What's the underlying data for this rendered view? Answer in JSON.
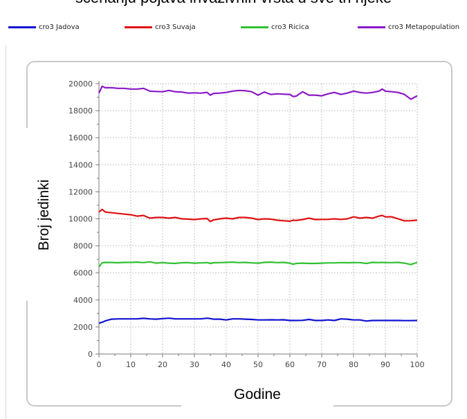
{
  "title": "scenariju pojava invazivnih vrsta u sve tri rijeke",
  "legend": [
    {
      "name": "cro3 Jadova",
      "color": "#1010d0"
    },
    {
      "name": "cro3 Suvaja",
      "color": "#e01010"
    },
    {
      "name": "cro3 Ricica",
      "color": "#30c030"
    },
    {
      "name": "cro3 Metapopulation",
      "color": "#8a18c8"
    }
  ],
  "chart_data": {
    "type": "line",
    "xlabel": "Godine",
    "ylabel": "Broj jedinki",
    "xlim": [
      0,
      100
    ],
    "ylim": [
      0,
      20000
    ],
    "xticks": [
      0,
      10,
      20,
      30,
      40,
      50,
      60,
      70,
      80,
      90,
      100
    ],
    "yticks": [
      0,
      2000,
      4000,
      6000,
      8000,
      10000,
      12000,
      14000,
      16000,
      18000,
      20000
    ],
    "grid": true,
    "x": [
      0,
      1,
      2,
      4,
      6,
      8,
      10,
      12,
      14,
      16,
      18,
      20,
      22,
      24,
      26,
      28,
      30,
      32,
      34,
      35,
      36,
      38,
      40,
      42,
      44,
      46,
      48,
      50,
      52,
      54,
      56,
      58,
      60,
      61,
      62,
      64,
      66,
      68,
      70,
      72,
      74,
      76,
      78,
      80,
      82,
      84,
      86,
      88,
      89,
      90,
      92,
      94,
      96,
      98,
      100
    ],
    "series": [
      {
        "name": "cro3 Jadova",
        "color": "#1010d0",
        "values": [
          2280,
          2350,
          2450,
          2580,
          2600,
          2600,
          2600,
          2600,
          2640,
          2600,
          2580,
          2620,
          2650,
          2600,
          2600,
          2600,
          2600,
          2600,
          2650,
          2620,
          2580,
          2580,
          2520,
          2600,
          2600,
          2580,
          2560,
          2520,
          2520,
          2530,
          2520,
          2530,
          2480,
          2480,
          2480,
          2490,
          2560,
          2480,
          2480,
          2520,
          2480,
          2600,
          2580,
          2520,
          2520,
          2440,
          2480,
          2480,
          2480,
          2480,
          2480,
          2480,
          2470,
          2470,
          2480
        ]
      },
      {
        "name": "cro3 Suvaja",
        "color": "#e01010",
        "values": [
          10500,
          10700,
          10500,
          10450,
          10400,
          10350,
          10300,
          10200,
          10250,
          10050,
          10100,
          10100,
          10050,
          10100,
          10000,
          9980,
          9950,
          10000,
          10020,
          9800,
          9920,
          10000,
          10050,
          10000,
          10100,
          10100,
          10050,
          9950,
          10000,
          9980,
          9900,
          9860,
          9820,
          9900,
          9880,
          9950,
          10050,
          9950,
          9960,
          9960,
          10000,
          9960,
          10000,
          10150,
          10050,
          10100,
          10050,
          10200,
          10250,
          10150,
          10150,
          10000,
          9850,
          9860,
          9900
        ]
      },
      {
        "name": "cro3 Ricica",
        "color": "#30c030",
        "values": [
          6450,
          6750,
          6780,
          6770,
          6750,
          6780,
          6780,
          6800,
          6760,
          6820,
          6720,
          6760,
          6720,
          6700,
          6750,
          6760,
          6720,
          6740,
          6760,
          6700,
          6750,
          6760,
          6780,
          6800,
          6760,
          6780,
          6740,
          6720,
          6780,
          6800,
          6760,
          6780,
          6720,
          6640,
          6700,
          6720,
          6700,
          6700,
          6720,
          6740,
          6740,
          6760,
          6750,
          6760,
          6760,
          6700,
          6780,
          6760,
          6780,
          6760,
          6760,
          6780,
          6720,
          6620,
          6780
        ]
      },
      {
        "name": "cro3 Metapopulation",
        "color": "#8a18c8",
        "values": [
          19300,
          19800,
          19700,
          19700,
          19650,
          19650,
          19600,
          19600,
          19650,
          19450,
          19420,
          19400,
          19500,
          19400,
          19380,
          19300,
          19320,
          19300,
          19350,
          19150,
          19280,
          19300,
          19350,
          19450,
          19500,
          19480,
          19400,
          19150,
          19380,
          19200,
          19250,
          19220,
          19200,
          19050,
          19080,
          19400,
          19150,
          19150,
          19100,
          19250,
          19350,
          19200,
          19300,
          19450,
          19350,
          19300,
          19350,
          19450,
          19600,
          19450,
          19400,
          19350,
          19200,
          18850,
          19100
        ]
      }
    ]
  }
}
